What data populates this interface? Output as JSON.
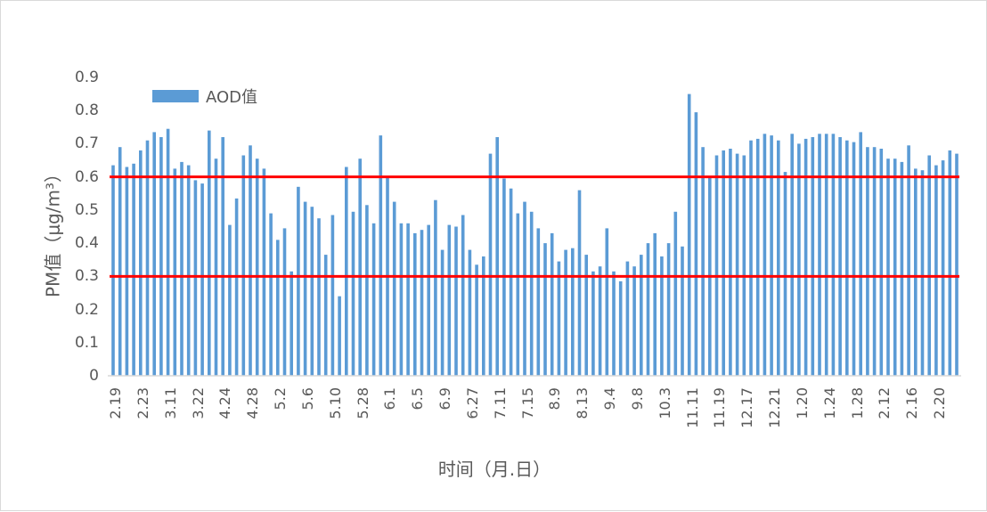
{
  "chart_data": {
    "type": "bar",
    "title": "",
    "xlabel": "时间（月.日）",
    "ylabel": "PM值（μg/m³）",
    "ylim": [
      0,
      0.9
    ],
    "yticks": [
      "0",
      "0.1",
      "0.2",
      "0.3",
      "0.4",
      "0.5",
      "0.6",
      "0.7",
      "0.8",
      "0.9"
    ],
    "grid": false,
    "legend": {
      "position": "top-left",
      "entries": [
        "AOD值"
      ]
    },
    "bar_color": "#5b9bd5",
    "reference_lines": [
      {
        "value": 0.6,
        "color": "#ff0000"
      },
      {
        "value": 0.3,
        "color": "#ff0000"
      }
    ],
    "tick_labels": [
      "2.19",
      "2.23",
      "3.11",
      "3.22",
      "4.24",
      "4.28",
      "5.2",
      "5.6",
      "5.10",
      "5.28",
      "6.1",
      "6.5",
      "6.9",
      "6.27",
      "7.11",
      "7.15",
      "8.9",
      "8.13",
      "9.4",
      "9.8",
      "10.3",
      "11.11",
      "11.19",
      "12.17",
      "12.21",
      "1.20",
      "1.24",
      "1.28",
      "2.12",
      "2.16",
      "2.20"
    ],
    "series": [
      {
        "name": "AOD值",
        "values": [
          0.635,
          0.69,
          0.63,
          0.64,
          0.68,
          0.71,
          0.735,
          0.72,
          0.745,
          0.625,
          0.645,
          0.635,
          0.59,
          0.58,
          0.74,
          0.655,
          0.72,
          0.455,
          0.535,
          0.665,
          0.695,
          0.655,
          0.625,
          0.49,
          0.41,
          0.445,
          0.315,
          0.57,
          0.525,
          0.51,
          0.475,
          0.365,
          0.485,
          0.24,
          0.63,
          0.495,
          0.655,
          0.515,
          0.46,
          0.725,
          0.6,
          0.525,
          0.46,
          0.46,
          0.43,
          0.44,
          0.455,
          0.53,
          0.38,
          0.455,
          0.45,
          0.485,
          0.38,
          0.335,
          0.36,
          0.67,
          0.72,
          0.595,
          0.565,
          0.49,
          0.525,
          0.495,
          0.445,
          0.4,
          0.43,
          0.345,
          0.38,
          0.385,
          0.56,
          0.365,
          0.315,
          0.33,
          0.445,
          0.315,
          0.285,
          0.345,
          0.33,
          0.365,
          0.4,
          0.43,
          0.36,
          0.4,
          0.495,
          0.39,
          0.85,
          0.795,
          0.69,
          0.6,
          0.665,
          0.68,
          0.685,
          0.67,
          0.665,
          0.71,
          0.715,
          0.73,
          0.725,
          0.71,
          0.615,
          0.73,
          0.7,
          0.715,
          0.72,
          0.73,
          0.73,
          0.73,
          0.72,
          0.71,
          0.705,
          0.735,
          0.69,
          0.69,
          0.685,
          0.655,
          0.655,
          0.645,
          0.695,
          0.625,
          0.62,
          0.665,
          0.635,
          0.65,
          0.68,
          0.67
        ]
      }
    ]
  }
}
